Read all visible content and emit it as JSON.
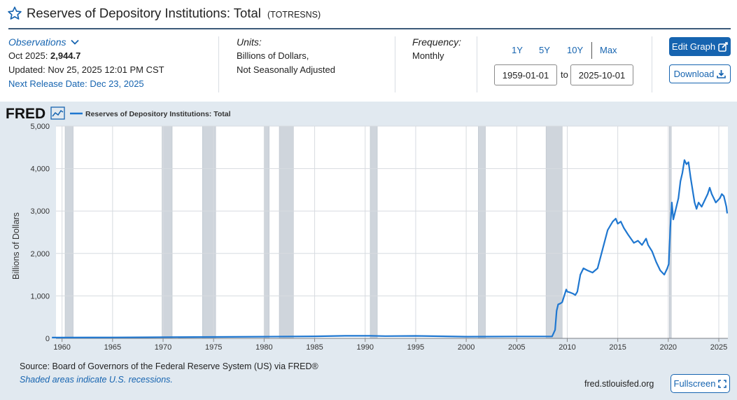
{
  "header": {
    "title": "Reserves of Depository Institutions: Total",
    "series_id": "(TOTRESNS)"
  },
  "observations": {
    "label": "Observations",
    "date": "Oct 2025:",
    "value": "2,944.7",
    "updated": "Updated: Nov 25, 2025 12:01 PM CST",
    "next_release": "Next Release Date: Dec 23, 2025"
  },
  "units": {
    "label": "Units:",
    "line1": "Billions of Dollars,",
    "line2": "Not Seasonally Adjusted"
  },
  "frequency": {
    "label": "Frequency:",
    "value": "Monthly"
  },
  "range": {
    "buttons": [
      "1Y",
      "5Y",
      "10Y",
      "Max"
    ],
    "start": "1959-01-01",
    "to_label": "to",
    "end": "2025-10-01"
  },
  "actions": {
    "edit_graph": "Edit Graph",
    "download": "Download",
    "fullscreen": "Fullscreen"
  },
  "footer": {
    "source": "Source: Board of Governors of the Federal Reserve System (US) via FRED®",
    "recession_note": "Shaded areas indicate U.S. recessions.",
    "url": "fred.stlouisfed.org"
  },
  "colors": {
    "accent": "#1664b0",
    "line": "#1f77d0",
    "recession": "#cfd5dc",
    "panel": "#e1e9f0"
  },
  "chart_data": {
    "type": "line",
    "logo": "FRED",
    "ylabel": "Billions of Dollars",
    "xlim": [
      1959.4,
      2025.9
    ],
    "ylim": [
      0,
      5000
    ],
    "yticks": [
      0,
      1000,
      2000,
      3000,
      4000,
      5000
    ],
    "ytick_labels": [
      "0",
      "1,000",
      "2,000",
      "3,000",
      "4,000",
      "5,000"
    ],
    "xticks": [
      1960,
      1965,
      1970,
      1975,
      1980,
      1985,
      1990,
      1995,
      2000,
      2005,
      2010,
      2015,
      2020,
      2025
    ],
    "xtick_labels": [
      "1960",
      "1965",
      "1970",
      "1975",
      "1980",
      "1985",
      "1990",
      "1995",
      "2000",
      "2005",
      "2010",
      "2015",
      "2020",
      "2025"
    ],
    "grid": true,
    "legend": "top-left",
    "recessions": [
      [
        1960.3,
        1961.1
      ],
      [
        1969.9,
        1970.9
      ],
      [
        1973.9,
        1975.2
      ],
      [
        1980.0,
        1980.5
      ],
      [
        1981.5,
        1982.9
      ],
      [
        1990.5,
        1991.2
      ],
      [
        2001.2,
        2001.9
      ],
      [
        2007.9,
        2009.5
      ],
      [
        2020.1,
        2020.3
      ]
    ],
    "series": [
      {
        "name": "Reserves of Depository Institutions: Total",
        "points": [
          [
            1959.0,
            18
          ],
          [
            1965.0,
            22
          ],
          [
            1970.0,
            28
          ],
          [
            1975.0,
            33
          ],
          [
            1980.0,
            40
          ],
          [
            1985.0,
            48
          ],
          [
            1988.0,
            60
          ],
          [
            1990.5,
            60
          ],
          [
            1992.0,
            52
          ],
          [
            1995.0,
            57
          ],
          [
            2000.0,
            40
          ],
          [
            2005.0,
            45
          ],
          [
            2008.5,
            45
          ],
          [
            2008.8,
            200
          ],
          [
            2008.95,
            650
          ],
          [
            2009.1,
            800
          ],
          [
            2009.3,
            820
          ],
          [
            2009.5,
            850
          ],
          [
            2009.7,
            1000
          ],
          [
            2009.9,
            1150
          ],
          [
            2010.0,
            1100
          ],
          [
            2010.3,
            1080
          ],
          [
            2010.6,
            1050
          ],
          [
            2010.8,
            1020
          ],
          [
            2011.0,
            1100
          ],
          [
            2011.3,
            1500
          ],
          [
            2011.6,
            1650
          ],
          [
            2012.0,
            1600
          ],
          [
            2012.5,
            1550
          ],
          [
            2013.0,
            1650
          ],
          [
            2013.5,
            2100
          ],
          [
            2014.0,
            2550
          ],
          [
            2014.5,
            2750
          ],
          [
            2014.8,
            2820
          ],
          [
            2015.0,
            2700
          ],
          [
            2015.3,
            2750
          ],
          [
            2015.6,
            2600
          ],
          [
            2016.0,
            2450
          ],
          [
            2016.3,
            2350
          ],
          [
            2016.6,
            2250
          ],
          [
            2017.0,
            2300
          ],
          [
            2017.4,
            2200
          ],
          [
            2017.8,
            2350
          ],
          [
            2018.0,
            2200
          ],
          [
            2018.4,
            2050
          ],
          [
            2018.8,
            1800
          ],
          [
            2019.2,
            1600
          ],
          [
            2019.6,
            1500
          ],
          [
            2019.9,
            1650
          ],
          [
            2020.05,
            1750
          ],
          [
            2020.2,
            2600
          ],
          [
            2020.35,
            3200
          ],
          [
            2020.5,
            2800
          ],
          [
            2020.8,
            3100
          ],
          [
            2021.0,
            3300
          ],
          [
            2021.2,
            3700
          ],
          [
            2021.4,
            3900
          ],
          [
            2021.6,
            4200
          ],
          [
            2021.8,
            4100
          ],
          [
            2022.0,
            4150
          ],
          [
            2022.2,
            3800
          ],
          [
            2022.4,
            3500
          ],
          [
            2022.6,
            3200
          ],
          [
            2022.8,
            3050
          ],
          [
            2023.0,
            3200
          ],
          [
            2023.3,
            3100
          ],
          [
            2023.6,
            3250
          ],
          [
            2023.9,
            3400
          ],
          [
            2024.1,
            3550
          ],
          [
            2024.3,
            3400
          ],
          [
            2024.5,
            3300
          ],
          [
            2024.7,
            3200
          ],
          [
            2024.9,
            3250
          ],
          [
            2025.1,
            3300
          ],
          [
            2025.3,
            3400
          ],
          [
            2025.5,
            3350
          ],
          [
            2025.65,
            3200
          ],
          [
            2025.75,
            3100
          ],
          [
            2025.83,
            2944.7
          ]
        ]
      }
    ]
  }
}
